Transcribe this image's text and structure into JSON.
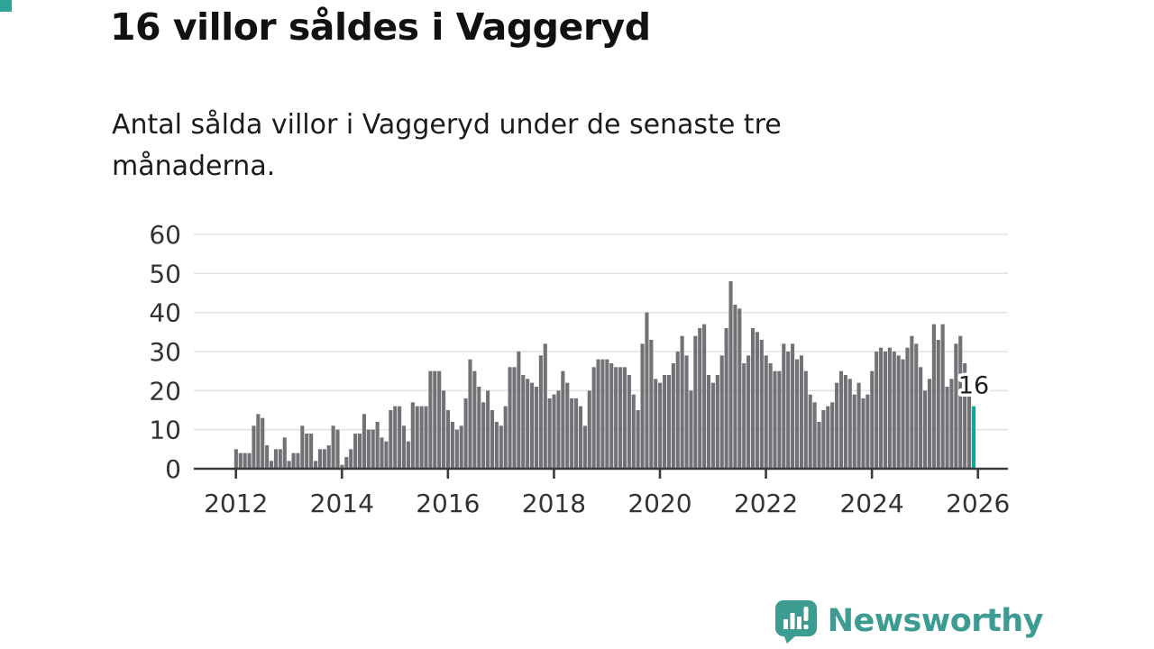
{
  "page": {
    "title": "16 villor såldes i Vaggeryd",
    "subtitle": "Antal sålda villor i Vaggeryd under de senaste tre månaderna.",
    "background_color": "#ffffff",
    "corner_square_color": "#2ea396"
  },
  "chart_data": {
    "type": "bar",
    "title": "16 villor såldes i Vaggeryd",
    "subtitle": "Antal sålda villor i Vaggeryd under de senaste tre månaderna.",
    "x_unit": "month",
    "x_start": "2012-01",
    "x_end": "2025-12",
    "x_tick_labels": [
      "2012",
      "2014",
      "2016",
      "2018",
      "2020",
      "2022",
      "2024",
      "2026"
    ],
    "y_ticks": [
      0,
      10,
      20,
      30,
      40,
      50,
      60
    ],
    "ylim": [
      0,
      60
    ],
    "grid": "horizontal",
    "legend": "none",
    "values": [
      5,
      4,
      4,
      4,
      11,
      14,
      13,
      6,
      2,
      5,
      5,
      8,
      2,
      4,
      4,
      11,
      9,
      9,
      2,
      5,
      5,
      6,
      11,
      10,
      1,
      3,
      5,
      9,
      9,
      14,
      10,
      10,
      12,
      8,
      7,
      15,
      16,
      16,
      11,
      7,
      17,
      16,
      16,
      16,
      25,
      25,
      25,
      20,
      15,
      12,
      10,
      11,
      18,
      28,
      25,
      21,
      17,
      20,
      15,
      12,
      11,
      16,
      26,
      26,
      30,
      24,
      23,
      22,
      21,
      29,
      32,
      18,
      19,
      20,
      25,
      22,
      18,
      18,
      16,
      11,
      20,
      26,
      28,
      28,
      28,
      27,
      26,
      26,
      26,
      24,
      19,
      15,
      32,
      40,
      33,
      23,
      22,
      24,
      24,
      27,
      30,
      34,
      29,
      20,
      34,
      36,
      37,
      24,
      22,
      24,
      29,
      36,
      48,
      42,
      41,
      27,
      29,
      36,
      35,
      33,
      29,
      27,
      25,
      25,
      32,
      30,
      32,
      28,
      29,
      25,
      19,
      17,
      12,
      15,
      16,
      17,
      22,
      25,
      24,
      23,
      19,
      22,
      18,
      19,
      25,
      30,
      31,
      30,
      31,
      30,
      29,
      28,
      31,
      34,
      32,
      26,
      20,
      23,
      37,
      33,
      37,
      21,
      23,
      32,
      34,
      27,
      19,
      16
    ],
    "highlight_index": 167,
    "highlight_value": 16,
    "annotation_label": "16",
    "bar_color": "#717176",
    "highlight_color": "#0fa79a",
    "axis_color": "#3b3b3b",
    "grid_color": "#e3e3e3",
    "tick_label_color": "#333333",
    "annotation_color": "#1f1f1f"
  },
  "logo": {
    "text": "Newsworthy",
    "color": "#3d9c92",
    "icon": "bar-chart-speech-bubble-icon"
  }
}
